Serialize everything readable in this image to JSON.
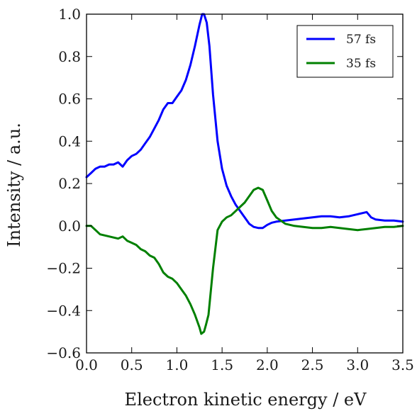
{
  "chart_data": {
    "type": "line",
    "xlabel": "Electron kinetic energy / eV",
    "ylabel": "Intensity / a.u.",
    "xlim": [
      0.0,
      3.5
    ],
    "ylim": [
      -0.6,
      1.0
    ],
    "xticks": [
      "0.0",
      "0.5",
      "1.0",
      "1.5",
      "2.0",
      "2.5",
      "3.0",
      "3.5"
    ],
    "yticks": [
      "−0.6",
      "−0.4",
      "−0.2",
      "0.0",
      "0.2",
      "0.4",
      "0.6",
      "0.8",
      "1.0"
    ],
    "grid": false,
    "legend_position": "top-right",
    "series": [
      {
        "name": "57 fs",
        "color": "#0000ff",
        "x": [
          0.0,
          0.05,
          0.1,
          0.15,
          0.2,
          0.25,
          0.3,
          0.35,
          0.4,
          0.45,
          0.5,
          0.55,
          0.6,
          0.65,
          0.7,
          0.75,
          0.8,
          0.85,
          0.9,
          0.95,
          1.0,
          1.05,
          1.1,
          1.15,
          1.2,
          1.25,
          1.28,
          1.3,
          1.33,
          1.36,
          1.4,
          1.45,
          1.5,
          1.55,
          1.6,
          1.65,
          1.7,
          1.75,
          1.8,
          1.85,
          1.9,
          1.95,
          2.0,
          2.05,
          2.1,
          2.2,
          2.3,
          2.4,
          2.5,
          2.6,
          2.7,
          2.8,
          2.9,
          3.0,
          3.05,
          3.1,
          3.15,
          3.2,
          3.3,
          3.4,
          3.5
        ],
        "y": [
          0.23,
          0.25,
          0.27,
          0.28,
          0.28,
          0.29,
          0.29,
          0.3,
          0.28,
          0.31,
          0.33,
          0.34,
          0.36,
          0.39,
          0.42,
          0.46,
          0.5,
          0.55,
          0.58,
          0.58,
          0.61,
          0.64,
          0.69,
          0.76,
          0.85,
          0.95,
          1.0,
          1.0,
          0.96,
          0.85,
          0.62,
          0.4,
          0.27,
          0.19,
          0.14,
          0.1,
          0.07,
          0.04,
          0.01,
          -0.005,
          -0.01,
          -0.01,
          0.005,
          0.015,
          0.02,
          0.025,
          0.03,
          0.035,
          0.04,
          0.045,
          0.045,
          0.04,
          0.045,
          0.055,
          0.06,
          0.065,
          0.04,
          0.03,
          0.025,
          0.025,
          0.02
        ]
      },
      {
        "name": "35 fs",
        "color": "#008000",
        "x": [
          0.0,
          0.05,
          0.1,
          0.15,
          0.2,
          0.25,
          0.3,
          0.35,
          0.4,
          0.45,
          0.5,
          0.55,
          0.6,
          0.65,
          0.7,
          0.75,
          0.8,
          0.85,
          0.9,
          0.95,
          1.0,
          1.05,
          1.1,
          1.15,
          1.2,
          1.25,
          1.27,
          1.3,
          1.32,
          1.35,
          1.4,
          1.45,
          1.5,
          1.55,
          1.6,
          1.65,
          1.7,
          1.75,
          1.8,
          1.85,
          1.9,
          1.95,
          2.0,
          2.05,
          2.1,
          2.15,
          2.2,
          2.3,
          2.4,
          2.5,
          2.6,
          2.7,
          2.8,
          2.9,
          3.0,
          3.1,
          3.2,
          3.3,
          3.4,
          3.5
        ],
        "y": [
          0.0,
          0.0,
          -0.02,
          -0.04,
          -0.045,
          -0.05,
          -0.055,
          -0.06,
          -0.05,
          -0.07,
          -0.08,
          -0.09,
          -0.11,
          -0.12,
          -0.14,
          -0.15,
          -0.18,
          -0.22,
          -0.24,
          -0.25,
          -0.27,
          -0.3,
          -0.33,
          -0.37,
          -0.42,
          -0.48,
          -0.51,
          -0.5,
          -0.47,
          -0.42,
          -0.2,
          -0.02,
          0.02,
          0.04,
          0.05,
          0.07,
          0.09,
          0.11,
          0.14,
          0.17,
          0.18,
          0.17,
          0.12,
          0.07,
          0.04,
          0.025,
          0.01,
          0.0,
          -0.005,
          -0.01,
          -0.01,
          -0.005,
          -0.01,
          -0.015,
          -0.02,
          -0.015,
          -0.01,
          -0.005,
          -0.005,
          0.0
        ]
      }
    ]
  }
}
